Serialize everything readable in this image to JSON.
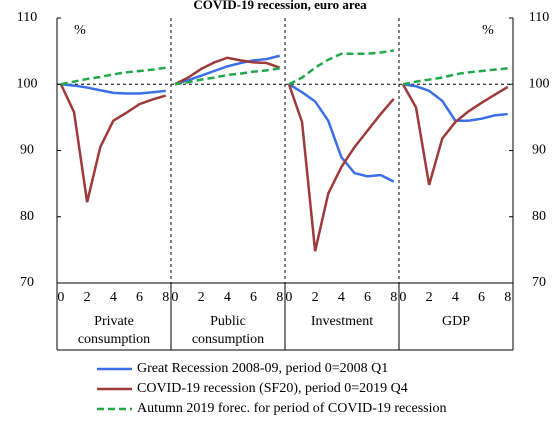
{
  "chart_data": {
    "type": "line",
    "title": "COVID-19 recession, euro area",
    "y_unit": "%",
    "ylim": [
      70,
      110
    ],
    "yticks": [
      70,
      80,
      90,
      100,
      110
    ],
    "y2lim": [
      70,
      110
    ],
    "y2ticks": [
      70,
      80,
      90,
      100,
      110
    ],
    "x": [
      0,
      1,
      2,
      3,
      4,
      5,
      6,
      7,
      8
    ],
    "xlim": [
      -0.3,
      8.4
    ],
    "xticks": [
      0,
      2,
      4,
      6,
      8
    ],
    "reference_line": 100,
    "panels": [
      {
        "label": [
          "Private",
          "consumption"
        ]
      },
      {
        "label": [
          "Public",
          "consumption"
        ]
      },
      {
        "label": [
          "Investment"
        ]
      },
      {
        "label": [
          "GDP"
        ]
      }
    ],
    "series": [
      {
        "name": "Great Recession 2008-09, period 0=2008 Q1",
        "color": "#3b6fe8",
        "dash": "solid",
        "values": [
          [
            100,
            99.8,
            99.5,
            99.1,
            98.7,
            98.6,
            98.6,
            98.8,
            99.0
          ],
          [
            100,
            100.6,
            101.3,
            102.0,
            102.7,
            103.2,
            103.6,
            103.8,
            104.3
          ],
          [
            100,
            98.8,
            97.4,
            94.5,
            89.0,
            86.6,
            86.1,
            86.3,
            85.3
          ],
          [
            100,
            99.7,
            99.0,
            97.5,
            94.5,
            94.5,
            94.8,
            95.3,
            95.5
          ]
        ]
      },
      {
        "name": "COVID-19 recession (SF20), period 0=2019 Q4",
        "color": "#9e3a3a",
        "dash": "solid",
        "values": [
          [
            100,
            95.8,
            82.2,
            90.5,
            94.5,
            95.7,
            97.0,
            97.7,
            98.3
          ],
          [
            100,
            101.0,
            102.3,
            103.3,
            104.0,
            103.6,
            103.3,
            103.2,
            102.5
          ],
          [
            100,
            94.3,
            74.8,
            83.5,
            87.5,
            90.5,
            93.0,
            95.5,
            97.8
          ],
          [
            100,
            96.5,
            84.8,
            91.8,
            94.3,
            95.9,
            97.2,
            98.4,
            99.6
          ]
        ]
      },
      {
        "name": "Autumn 2019 forec. for period of COVID-19 recession",
        "color": "#21a84a",
        "dash": "dashed",
        "values": [
          [
            100,
            100.4,
            100.8,
            101.1,
            101.5,
            101.8,
            102.0,
            102.2,
            102.5
          ],
          [
            100,
            100.3,
            100.7,
            101.0,
            101.4,
            101.6,
            101.9,
            102.1,
            102.4
          ],
          [
            100,
            101.0,
            102.5,
            103.7,
            104.6,
            104.6,
            104.6,
            104.8,
            105.1
          ],
          [
            100,
            100.4,
            100.7,
            101.0,
            101.5,
            101.8,
            102.0,
            102.2,
            102.4
          ]
        ]
      }
    ]
  }
}
